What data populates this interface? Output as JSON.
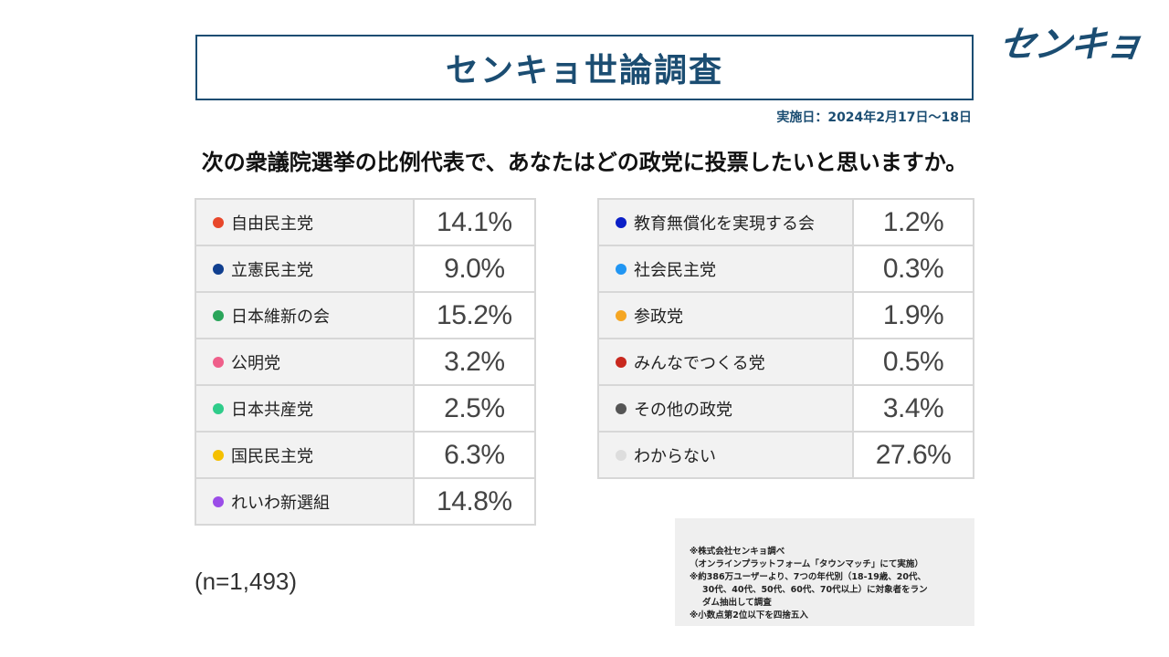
{
  "header": {
    "title": "センキョ世論調査",
    "logo_text": "センキョ",
    "date": "実施日：2024年2月17日〜18日"
  },
  "question": "次の衆議院選挙の比例代表で、あなたはどの政党に投票したいと思いますか。",
  "sample_size": "(n=1,493)",
  "notes": [
    "※株式会社センキョ調べ",
    "（オンラインプラットフォーム「タウンマッチ」にて実施）",
    "※約386万ユーザーより、7つの年代別（18-19歳、20代、",
    "30代、40代、50代、60代、70代以上）に対象者をラン",
    "ダム抽出して調査",
    "※小数点第2位以下を四捨五入"
  ],
  "chart_data": {
    "type": "table",
    "rows": [
      {
        "name": "自由民主党",
        "value": 14.1,
        "label": "14.1%",
        "color": "#e8472b"
      },
      {
        "name": "立憲民主党",
        "value": 9.0,
        "label": "9.0%",
        "color": "#103f8f"
      },
      {
        "name": "日本維新の会",
        "value": 15.2,
        "label": "15.2%",
        "color": "#2aa55a"
      },
      {
        "name": "公明党",
        "value": 3.2,
        "label": "3.2%",
        "color": "#ef5f8a"
      },
      {
        "name": "日本共産党",
        "value": 2.5,
        "label": "2.5%",
        "color": "#2fcc8a"
      },
      {
        "name": "国民民主党",
        "value": 6.3,
        "label": "6.3%",
        "color": "#f5c000"
      },
      {
        "name": "れいわ新選組",
        "value": 14.8,
        "label": "14.8%",
        "color": "#9b4de8"
      },
      {
        "name": "教育無償化を実現する会",
        "value": 1.2,
        "label": "1.2%",
        "color": "#0b1fc7"
      },
      {
        "name": "社会民主党",
        "value": 0.3,
        "label": "0.3%",
        "color": "#2196f3"
      },
      {
        "name": "参政党",
        "value": 1.9,
        "label": "1.9%",
        "color": "#f5a623"
      },
      {
        "name": "みんなでつくる党",
        "value": 0.5,
        "label": "0.5%",
        "color": "#c8281e"
      },
      {
        "name": "その他の政党",
        "value": 3.4,
        "label": "3.4%",
        "color": "#555555"
      },
      {
        "name": "わからない",
        "value": 27.6,
        "label": "27.6%",
        "color": "#dddddd"
      }
    ]
  }
}
